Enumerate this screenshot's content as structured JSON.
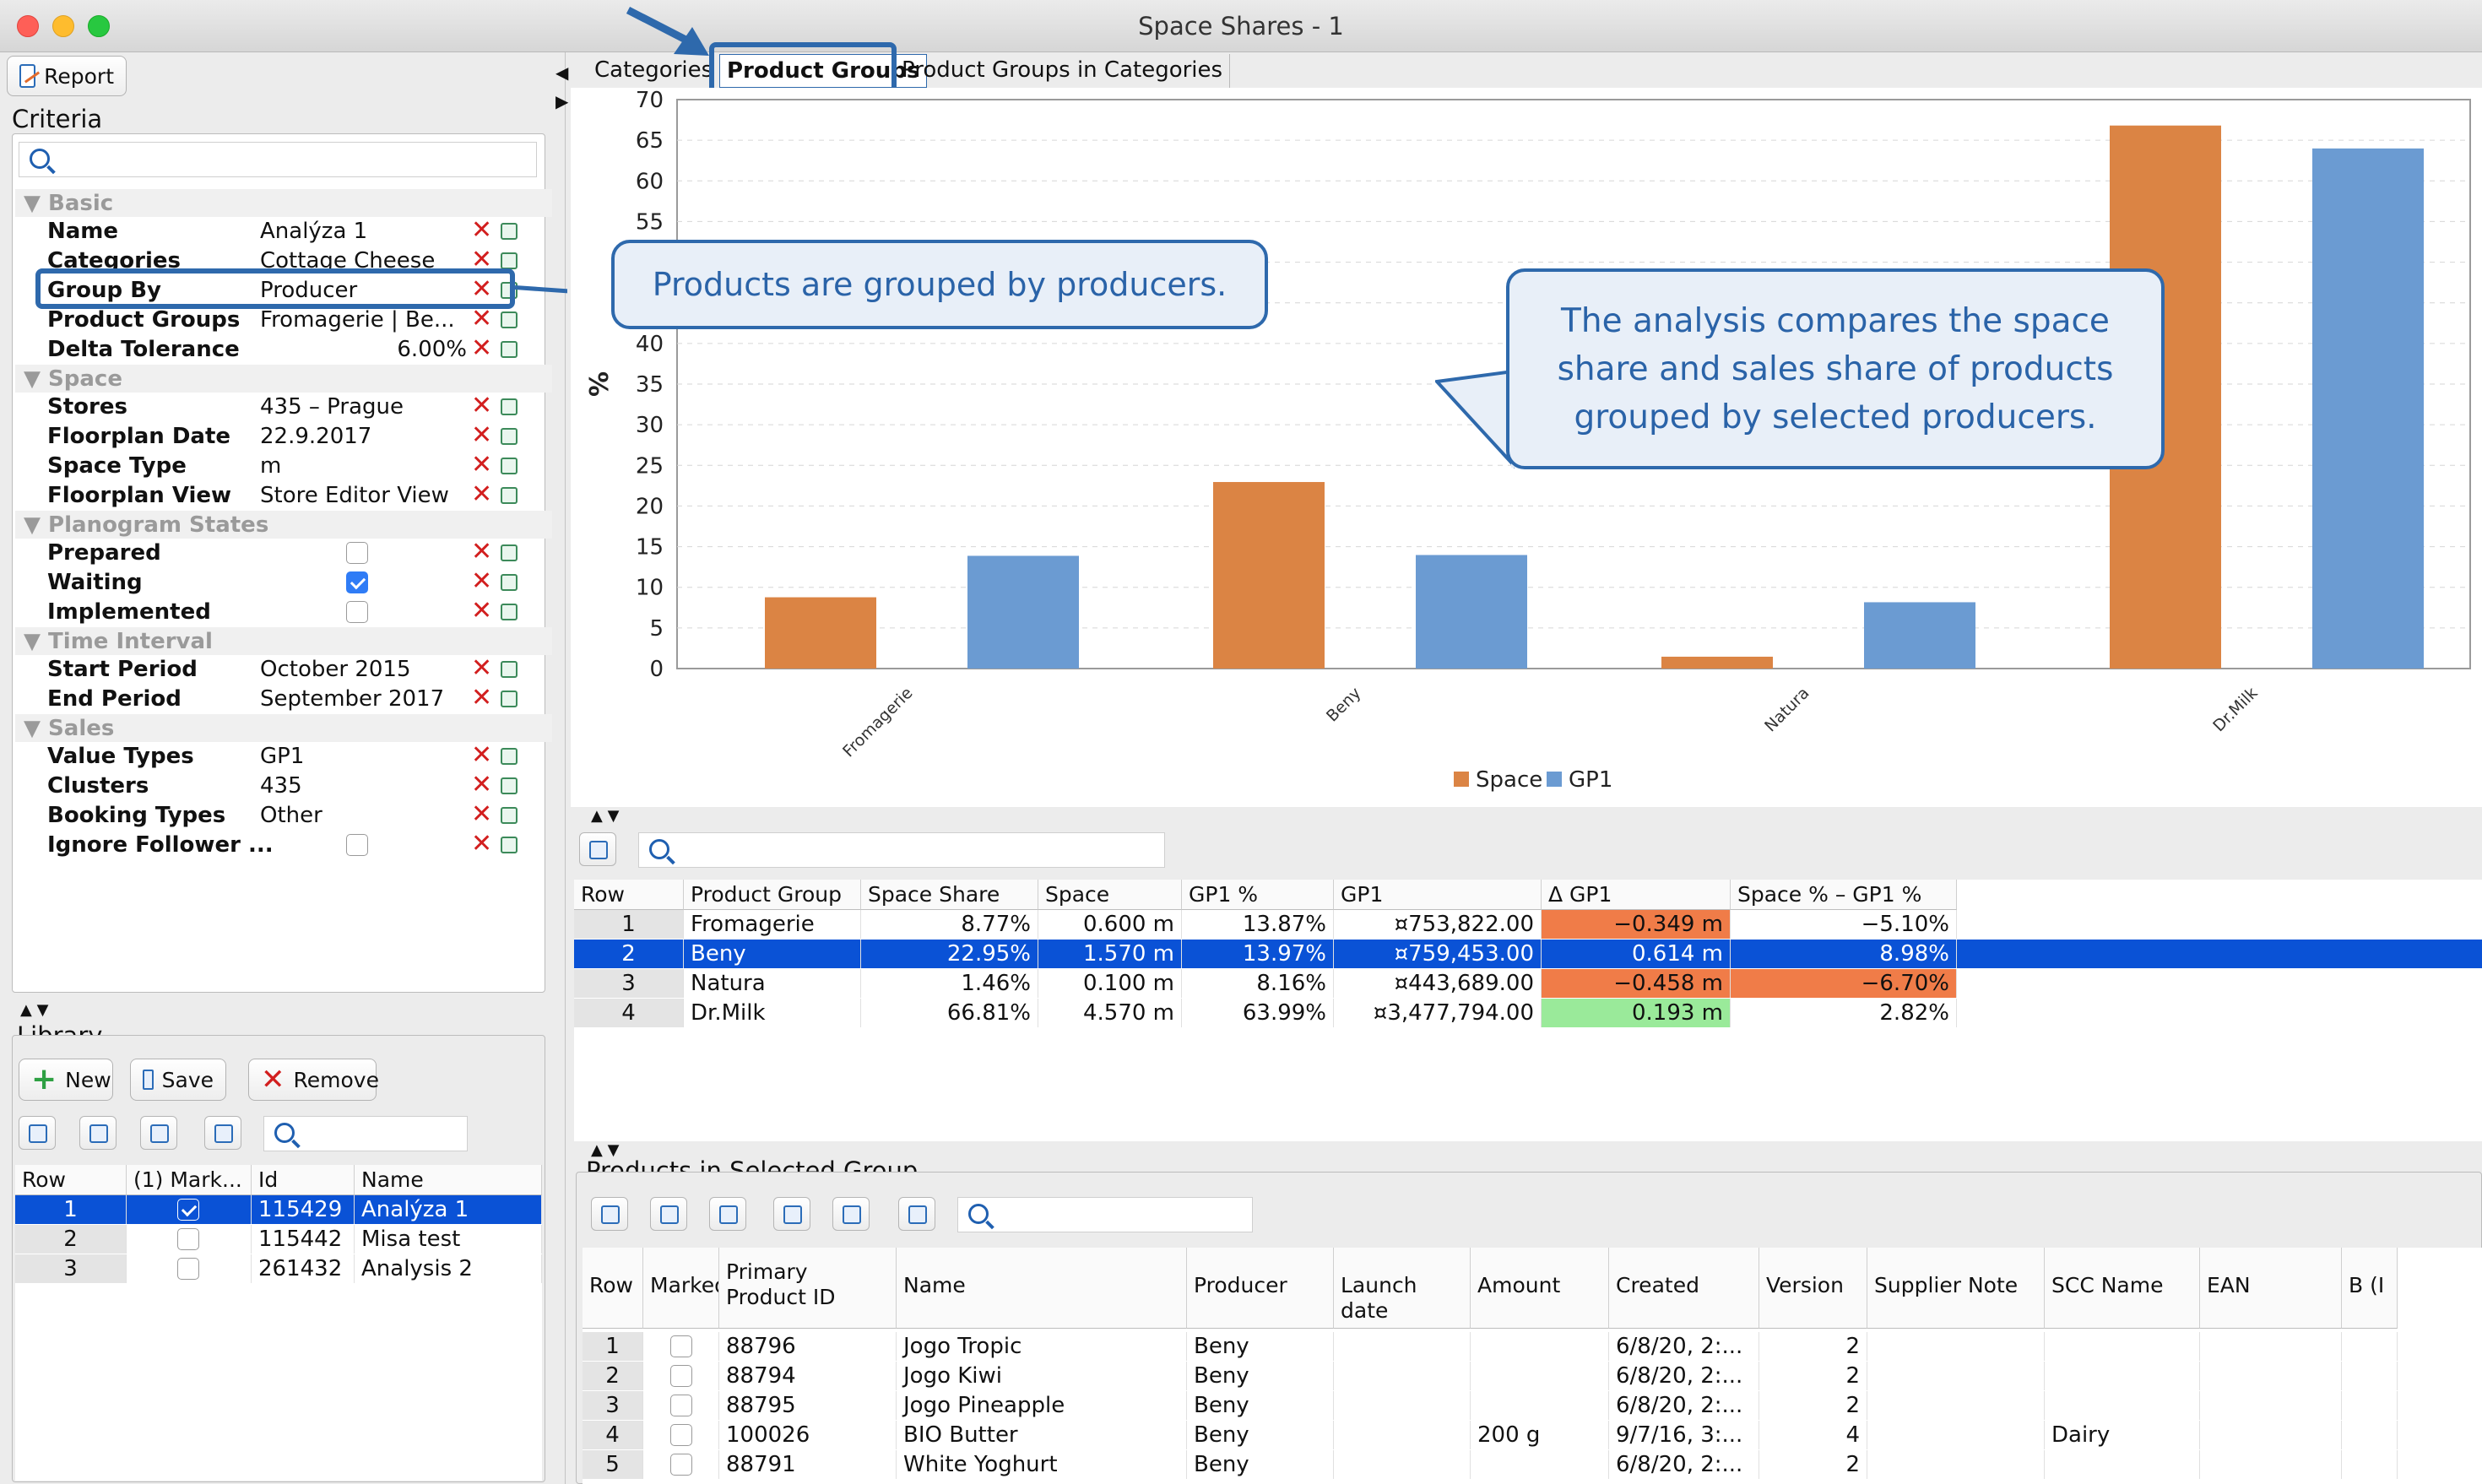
{
  "window": {
    "title": "Space Shares - 1"
  },
  "toolbar": {
    "report_label": "Report"
  },
  "criteria": {
    "title": "Criteria",
    "groups": [
      {
        "name": "Basic",
        "rows": [
          {
            "key": "Name",
            "value": "Analýza 1"
          },
          {
            "key": "Categories",
            "value": "Cottage Cheese"
          },
          {
            "key": "Group By",
            "value": "Producer"
          },
          {
            "key": "Product Groups",
            "value": "Fromagerie | Be..."
          },
          {
            "key": "Delta Tolerance",
            "value": "6.00%"
          }
        ]
      },
      {
        "name": "Space",
        "rows": [
          {
            "key": "Stores",
            "value": "435 – Prague"
          },
          {
            "key": "Floorplan Date",
            "value": "22.9.2017"
          },
          {
            "key": "Space Type",
            "value": "m"
          },
          {
            "key": "Floorplan View",
            "value": "Store Editor View"
          }
        ]
      },
      {
        "name": "Planogram States",
        "rows": [
          {
            "key": "Prepared",
            "checked": false
          },
          {
            "key": "Waiting",
            "checked": true
          },
          {
            "key": "Implemented",
            "checked": false
          }
        ]
      },
      {
        "name": "Time Interval",
        "rows": [
          {
            "key": "Start Period",
            "value": "October 2015"
          },
          {
            "key": "End Period",
            "value": "September 2017"
          }
        ]
      },
      {
        "name": "Sales",
        "rows": [
          {
            "key": "Value Types",
            "value": "GP1"
          },
          {
            "key": "Clusters",
            "value": "435"
          },
          {
            "key": "Booking Types",
            "value": "Other"
          },
          {
            "key": "Ignore Follower ...",
            "checked": false
          }
        ]
      }
    ]
  },
  "library": {
    "title": "Library",
    "new_label": "New",
    "save_label": "Save",
    "remove_label": "Remove",
    "columns": [
      "Row",
      "(1) Mark...",
      "Id",
      "Name"
    ],
    "rows": [
      {
        "row": "1",
        "marked": true,
        "id": "115429",
        "name": "Analýza 1",
        "selected": true
      },
      {
        "row": "2",
        "marked": false,
        "id": "115442",
        "name": "Misa test"
      },
      {
        "row": "3",
        "marked": false,
        "id": "261432",
        "name": "Analysis 2"
      }
    ]
  },
  "tabs": [
    "Categories",
    "Product Groups",
    "Product Groups in Categories"
  ],
  "active_tab": "Product Groups",
  "chart_data": {
    "type": "bar",
    "ylabel": "%",
    "ylim": [
      0,
      70
    ],
    "yticks": [
      0,
      5,
      10,
      15,
      20,
      25,
      30,
      35,
      40,
      45,
      50,
      55,
      60,
      65,
      70
    ],
    "categories": [
      "Fromagerie",
      "Beny",
      "Natura",
      "Dr.Milk"
    ],
    "series": [
      {
        "name": "Space",
        "color": "#db8444",
        "values": [
          8.77,
          22.95,
          1.46,
          66.81
        ]
      },
      {
        "name": "GP1",
        "color": "#6b9bd2",
        "values": [
          13.87,
          13.97,
          8.16,
          63.99
        ]
      }
    ],
    "legend": "bottom"
  },
  "callouts": {
    "group_by": "Products are grouped by producers.",
    "analysis": "The analysis compares the space share and sales share of products grouped by selected producers."
  },
  "summary_table": {
    "columns": [
      "Row",
      "Product Group",
      "Space Share",
      "Space",
      "GP1 %",
      "GP1",
      "Δ GP1",
      "Space % – GP1 %"
    ],
    "rows": [
      {
        "row": "1",
        "group": "Fromagerie",
        "share": "8.77%",
        "space": "0.600 m",
        "gp1pct": "13.87%",
        "gp1": "¤753,822.00",
        "delta": "−0.349 m",
        "diff": "−5.10%"
      },
      {
        "row": "2",
        "group": "Beny",
        "share": "22.95%",
        "space": "1.570 m",
        "gp1pct": "13.97%",
        "gp1": "¤759,453.00",
        "delta": "0.614 m",
        "diff": "8.98%"
      },
      {
        "row": "3",
        "group": "Natura",
        "share": "1.46%",
        "space": "0.100 m",
        "gp1pct": "8.16%",
        "gp1": "¤443,689.00",
        "delta": "−0.458 m",
        "diff": "−6.70%"
      },
      {
        "row": "4",
        "group": "Dr.Milk",
        "share": "66.81%",
        "space": "4.570 m",
        "gp1pct": "63.99%",
        "gp1": "¤3,477,794.00",
        "delta": "0.193 m",
        "diff": "2.82%"
      }
    ]
  },
  "products": {
    "title": "Products in Selected Group",
    "columns": [
      "Row",
      "Marked",
      "Primary Product ID",
      "Name",
      "Producer",
      "Launch date",
      "Amount",
      "Created",
      "Version",
      "Supplier Note",
      "SCC Name",
      "EAN",
      "B (I"
    ],
    "rows": [
      {
        "row": "1",
        "id": "88796",
        "name": "Jogo Tropic",
        "producer": "Beny",
        "amount": "",
        "created": "6/8/20, 2:...",
        "version": "2",
        "scc": ""
      },
      {
        "row": "2",
        "id": "88794",
        "name": "Jogo Kiwi",
        "producer": "Beny",
        "amount": "",
        "created": "6/8/20, 2:...",
        "version": "2",
        "scc": ""
      },
      {
        "row": "3",
        "id": "88795",
        "name": "Jogo Pineapple",
        "producer": "Beny",
        "amount": "",
        "created": "6/8/20, 2:...",
        "version": "2",
        "scc": ""
      },
      {
        "row": "4",
        "id": "100026",
        "name": "BIO Butter",
        "producer": "Beny",
        "amount": "200 g",
        "created": "9/7/16, 3:...",
        "version": "4",
        "scc": "Dairy"
      },
      {
        "row": "5",
        "id": "88791",
        "name": "White Yoghurt",
        "producer": "Beny",
        "amount": "",
        "created": "6/8/20, 2:...",
        "version": "2",
        "scc": ""
      }
    ]
  }
}
